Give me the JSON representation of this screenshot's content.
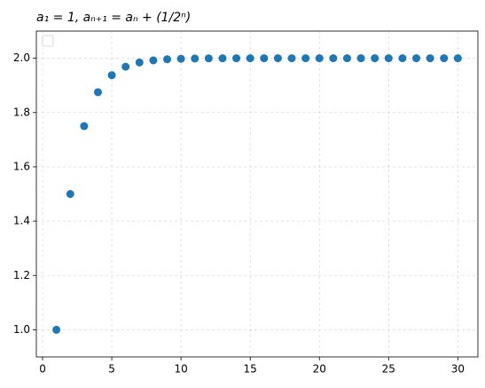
{
  "chart_data": {
    "type": "scatter",
    "title": "a₁ = 1,  aₙ₊₁ = aₙ + (1/2ⁿ)",
    "x": [
      1,
      2,
      3,
      4,
      5,
      6,
      7,
      8,
      9,
      10,
      11,
      12,
      13,
      14,
      15,
      16,
      17,
      18,
      19,
      20,
      21,
      22,
      23,
      24,
      25,
      26,
      27,
      28,
      29,
      30
    ],
    "values": [
      1,
      1.5,
      1.75,
      1.875,
      1.9375,
      1.9688,
      1.9844,
      1.9922,
      1.9961,
      1.998,
      1.999,
      1.9995,
      1.9998,
      1.9999,
      2,
      2,
      2,
      2,
      2,
      2,
      2,
      2,
      2,
      2,
      2,
      2,
      2,
      2,
      2,
      2
    ],
    "color": "#1f77b4",
    "xlim": [
      -0.45,
      31.45
    ],
    "xticks": [
      0,
      5,
      10,
      15,
      20,
      25,
      30
    ],
    "ylim": [
      0.9,
      2.1
    ],
    "yticks": [
      {
        "value": 1,
        "label": "1.0"
      },
      {
        "value": 1.2,
        "label": "1.2"
      },
      {
        "value": 1.4,
        "label": "1.4"
      },
      {
        "value": 1.6,
        "label": "1.6"
      },
      {
        "value": 1.8,
        "label": "1.8"
      },
      {
        "value": 2,
        "label": "2.0"
      }
    ],
    "grid": true,
    "legend": "upper left"
  }
}
